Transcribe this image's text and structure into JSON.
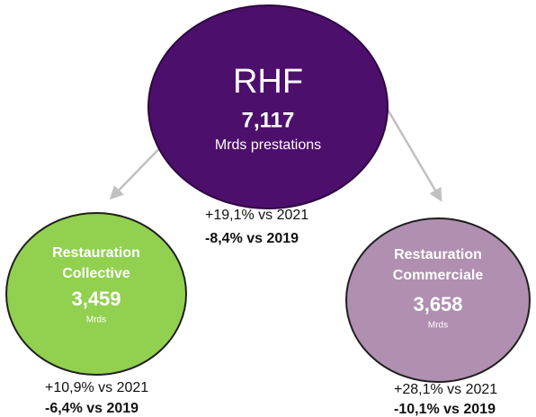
{
  "nodes": [
    {
      "title": "RHF",
      "value": "7,117",
      "unit": "Mrds prestations",
      "change_2021": "+19,1% vs 2021",
      "change_2019": "-8,4% vs 2019"
    },
    {
      "title": [
        "Restauration",
        "Collective"
      ],
      "value": "3,459",
      "unit": "Mrds",
      "change_2021": "+10,9% vs 2021",
      "change_2019": "-6,4% vs 2019"
    },
    {
      "title": [
        "Restauration",
        "Commerciale"
      ],
      "value": "3,658",
      "unit": "Mrds",
      "change_2021": "+28,1% vs 2021",
      "change_2019": "-10,1% vs 2019"
    }
  ]
}
